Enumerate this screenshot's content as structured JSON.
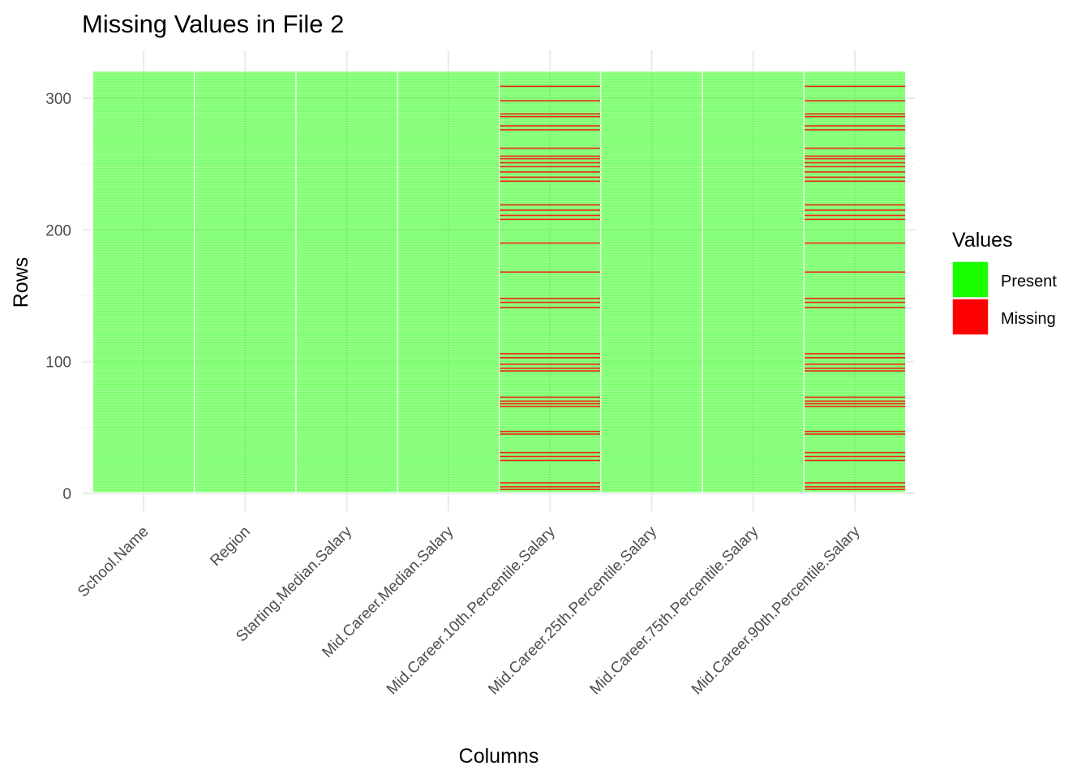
{
  "chart_data": {
    "type": "heatmap",
    "title": "Missing Values in File 2",
    "xlabel": "Columns",
    "ylabel": "Rows",
    "columns": [
      "School.Name",
      "Region",
      "Starting.Median.Salary",
      "Mid.Career.Median.Salary",
      "Mid.Career.10th.Percentile.Salary",
      "Mid.Career.25th.Percentile.Salary",
      "Mid.Career.75th.Percentile.Salary",
      "Mid.Career.90th.Percentile.Salary"
    ],
    "row_count": 320,
    "ylim": [
      0,
      320
    ],
    "y_ticks": [
      0,
      100,
      200,
      300
    ],
    "grid": true,
    "legend": {
      "title": "Values",
      "placement": "right",
      "entries": [
        {
          "label": "Present",
          "color": "#1aff00"
        },
        {
          "label": "Missing",
          "color": "#ff0000"
        }
      ]
    },
    "missing_rows_by_column": {
      "Mid.Career.10th.Percentile.Salary": [
        3,
        5,
        8,
        25,
        28,
        31,
        45,
        47,
        66,
        68,
        70,
        73,
        93,
        95,
        98,
        103,
        106,
        141,
        145,
        148,
        168,
        190,
        208,
        211,
        215,
        219,
        237,
        240,
        244,
        248,
        251,
        254,
        256,
        262,
        276,
        279,
        286,
        288,
        298,
        309
      ],
      "Mid.Career.90th.Percentile.Salary": [
        3,
        5,
        8,
        25,
        28,
        31,
        45,
        47,
        66,
        68,
        70,
        73,
        93,
        95,
        98,
        103,
        106,
        141,
        145,
        148,
        168,
        190,
        208,
        211,
        215,
        219,
        237,
        240,
        244,
        248,
        251,
        254,
        256,
        262,
        276,
        279,
        286,
        288,
        298,
        309
      ]
    }
  }
}
